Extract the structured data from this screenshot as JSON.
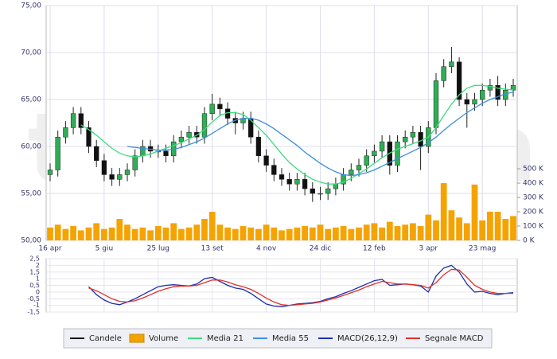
{
  "chart_data": [
    {
      "type": "candlestick",
      "watermark": "teleborsa",
      "categories": [
        "16 apr",
        null,
        null,
        null,
        null,
        null,
        null,
        "5 giu",
        null,
        null,
        null,
        null,
        null,
        null,
        "25 lug",
        null,
        null,
        null,
        null,
        null,
        null,
        "13 set",
        null,
        null,
        null,
        null,
        null,
        null,
        "4 nov",
        null,
        null,
        null,
        null,
        null,
        null,
        "24 dic",
        null,
        null,
        null,
        null,
        null,
        null,
        "12 feb",
        null,
        null,
        null,
        null,
        null,
        null,
        "3 apr",
        null,
        null,
        null,
        null,
        null,
        null,
        "23 mag",
        null,
        null,
        null,
        null
      ],
      "series": [
        {
          "name": "Candele",
          "color": "#111111",
          "up_color": "#2fae55",
          "open": [
            57,
            57.5,
            61,
            62,
            63.5,
            62,
            60,
            58.5,
            57,
            56.5,
            57,
            57.5,
            59,
            60,
            59.5,
            59.5,
            59,
            60.5,
            61,
            61.5,
            61,
            63.5,
            64.5,
            64,
            63,
            62.5,
            63,
            61,
            59,
            58,
            57,
            56.5,
            56,
            56.5,
            55.5,
            55,
            55,
            55.5,
            56,
            57,
            57.5,
            58,
            59,
            59.5,
            60.5,
            58,
            60.5,
            61,
            61.5,
            60,
            62,
            67,
            68.5,
            69,
            65,
            64.5,
            65,
            66,
            66.5,
            65,
            66
          ],
          "high": [
            58.2,
            61.7,
            62.7,
            64.2,
            64.2,
            62.7,
            60.7,
            59.2,
            57.7,
            57.7,
            58.2,
            59.7,
            60.7,
            60.7,
            60.2,
            60.2,
            61.2,
            61.7,
            62.2,
            62.2,
            64.2,
            65.6,
            65.2,
            64.7,
            63.7,
            63.7,
            63.7,
            61.7,
            59.7,
            58.7,
            57.7,
            57.2,
            57.2,
            57.2,
            56.2,
            55.7,
            56.2,
            56.7,
            57.7,
            58.2,
            58.7,
            59.7,
            60.2,
            61.2,
            61.2,
            61.2,
            61.7,
            62.2,
            62.2,
            62.7,
            67.8,
            69.3,
            70.6,
            69.5,
            65.7,
            65.7,
            66.7,
            67.2,
            67.5,
            66.7,
            67.2
          ],
          "low": [
            56.3,
            56.8,
            60.3,
            61.3,
            61.3,
            59.3,
            57.8,
            56.3,
            55.8,
            55.8,
            56.3,
            56.8,
            58.3,
            58.8,
            58.8,
            58.3,
            58.3,
            59.8,
            60.3,
            60.3,
            60.3,
            62.8,
            63.3,
            62.3,
            61.3,
            61.8,
            60.3,
            58.3,
            57.3,
            56.3,
            55.8,
            55.3,
            55.3,
            54.8,
            54.1,
            54.3,
            54.3,
            54.8,
            55.3,
            56.3,
            56.8,
            57.3,
            58.3,
            58.8,
            57,
            57.3,
            59.8,
            60.3,
            57.5,
            59.3,
            61.3,
            66.3,
            67.8,
            64.3,
            62,
            63.8,
            64.3,
            65.3,
            64.3,
            64.3,
            65.3
          ],
          "close": [
            57.5,
            61,
            62,
            63.5,
            62,
            60,
            58.5,
            57,
            56.5,
            57,
            57.5,
            59,
            60,
            59.5,
            59.5,
            59,
            60.5,
            61,
            61.5,
            61,
            63.5,
            64.5,
            64,
            63,
            62.5,
            63,
            61,
            59,
            58,
            57,
            56.5,
            56,
            56.5,
            55.5,
            55,
            55,
            55.5,
            56,
            57,
            57.5,
            58,
            59,
            59.5,
            60.5,
            58,
            60.5,
            61,
            61.5,
            60,
            62,
            67,
            68.5,
            69,
            65,
            64.5,
            65,
            66,
            66.5,
            65,
            66,
            66.5
          ]
        },
        {
          "name": "Volume",
          "type": "bar",
          "axis": "y2",
          "color": "#f5a300",
          "values": [
            90000,
            110000,
            80000,
            100000,
            70000,
            90000,
            120000,
            80000,
            90000,
            150000,
            110000,
            80000,
            90000,
            70000,
            100000,
            90000,
            120000,
            80000,
            90000,
            110000,
            150000,
            200000,
            110000,
            90000,
            80000,
            100000,
            90000,
            80000,
            110000,
            90000,
            70000,
            80000,
            90000,
            100000,
            90000,
            110000,
            80000,
            90000,
            100000,
            80000,
            90000,
            110000,
            120000,
            90000,
            130000,
            100000,
            110000,
            120000,
            100000,
            180000,
            140000,
            400000,
            210000,
            160000,
            120000,
            390000,
            140000,
            200000,
            200000,
            150000,
            170000
          ]
        },
        {
          "name": "Media 21",
          "type": "line",
          "color": "#3ddc7e",
          "values": [
            null,
            null,
            null,
            null,
            62.3,
            61.8,
            61.2,
            60.5,
            59.8,
            59.3,
            59,
            58.9,
            59,
            59.2,
            59.5,
            59.8,
            60.1,
            60.4,
            60.8,
            61.2,
            61.8,
            62.6,
            63.3,
            63.6,
            63.6,
            63.4,
            62.8,
            62,
            61.2,
            60.2,
            59.2,
            58.3,
            57.6,
            57,
            56.5,
            56.2,
            56,
            56,
            56.2,
            56.6,
            57.1,
            57.6,
            58.2,
            58.8,
            59.3,
            59.7,
            60,
            60.3,
            60.6,
            61,
            62,
            63.3,
            64.5,
            65.5,
            66.2,
            66.5,
            66.5,
            66.4,
            66.2,
            66.1,
            66
          ]
        },
        {
          "name": "Media 55",
          "type": "line",
          "color": "#3b8fdc",
          "values": [
            null,
            null,
            null,
            null,
            null,
            null,
            null,
            null,
            null,
            null,
            60,
            59.9,
            59.8,
            59.7,
            59.6,
            59.6,
            59.7,
            59.9,
            60.2,
            60.5,
            60.9,
            61.4,
            61.9,
            62.4,
            62.8,
            63,
            63,
            62.8,
            62.4,
            61.9,
            61.3,
            60.7,
            60.1,
            59.4,
            58.8,
            58.2,
            57.7,
            57.3,
            57,
            56.9,
            57,
            57.2,
            57.5,
            57.9,
            58.3,
            58.7,
            59.1,
            59.5,
            59.9,
            60.4,
            61,
            61.7,
            62.4,
            63,
            63.6,
            64.1,
            64.6,
            65,
            65.3,
            65.6,
            65.8
          ]
        }
      ],
      "ylim": [
        50,
        75
      ],
      "yticks": [
        {
          "value": 50,
          "label": "50,00"
        },
        {
          "value": 55,
          "label": "55,00"
        },
        {
          "value": 60,
          "label": "60,00"
        },
        {
          "value": 65,
          "label": "65,00"
        },
        {
          "value": 70,
          "label": "70,00"
        },
        {
          "value": 75,
          "label": "75,00"
        }
      ],
      "y2lim": [
        0,
        1640000
      ],
      "y2ticks": [
        {
          "value": 0,
          "label": "0 K"
        },
        {
          "value": 100000,
          "label": "100 K"
        },
        {
          "value": 200000,
          "label": "200 K"
        },
        {
          "value": 300000,
          "label": "300 K"
        },
        {
          "value": 400000,
          "label": "400 K"
        },
        {
          "value": 500000,
          "label": "500 K"
        }
      ],
      "grid": true
    },
    {
      "type": "line",
      "series": [
        {
          "name": "MACD(26,12,9)",
          "color": "#1c2fa8",
          "values": [
            null,
            null,
            null,
            null,
            null,
            0.4,
            -0.2,
            -0.6,
            -0.85,
            -0.95,
            -0.75,
            -0.5,
            -0.2,
            0.1,
            0.4,
            0.5,
            0.55,
            0.5,
            0.45,
            0.6,
            1.0,
            1.1,
            0.8,
            0.5,
            0.3,
            0.2,
            -0.1,
            -0.5,
            -0.9,
            -1.05,
            -1.1,
            -1.0,
            -0.9,
            -0.85,
            -0.8,
            -0.7,
            -0.5,
            -0.35,
            -0.1,
            0.1,
            0.35,
            0.6,
            0.85,
            0.95,
            0.5,
            0.55,
            0.6,
            0.55,
            0.45,
            0,
            1.2,
            1.8,
            2.0,
            1.5,
            0.6,
            0,
            0.05,
            -0.1,
            -0.2,
            -0.1,
            -0.05
          ]
        },
        {
          "name": "Segnale MACD",
          "color": "#e0302a",
          "values": [
            null,
            null,
            null,
            null,
            null,
            0.3,
            0.1,
            -0.2,
            -0.5,
            -0.7,
            -0.75,
            -0.65,
            -0.45,
            -0.2,
            0.05,
            0.25,
            0.4,
            0.45,
            0.45,
            0.5,
            0.7,
            0.9,
            0.9,
            0.75,
            0.55,
            0.4,
            0.2,
            -0.1,
            -0.45,
            -0.75,
            -0.95,
            -1.0,
            -0.95,
            -0.9,
            -0.85,
            -0.75,
            -0.6,
            -0.45,
            -0.25,
            -0.05,
            0.15,
            0.4,
            0.6,
            0.8,
            0.7,
            0.6,
            0.6,
            0.55,
            0.5,
            0.3,
            0.7,
            1.3,
            1.7,
            1.65,
            1.1,
            0.5,
            0.2,
            0,
            -0.1,
            -0.1,
            -0.1
          ]
        }
      ],
      "ylim": [
        -1.5,
        2.5
      ],
      "yticks": [
        {
          "value": 2.5,
          "label": "2,5"
        },
        2,
        {
          "value": 1.5,
          "label": "1,5"
        },
        1,
        {
          "value": 0.5,
          "label": "0,5"
        },
        0,
        {
          "value": -0.5,
          "label": "-0,5"
        },
        -1,
        {
          "value": -1.5,
          "label": "-1,5"
        }
      ],
      "grid": true,
      "legend": "bottom"
    }
  ]
}
